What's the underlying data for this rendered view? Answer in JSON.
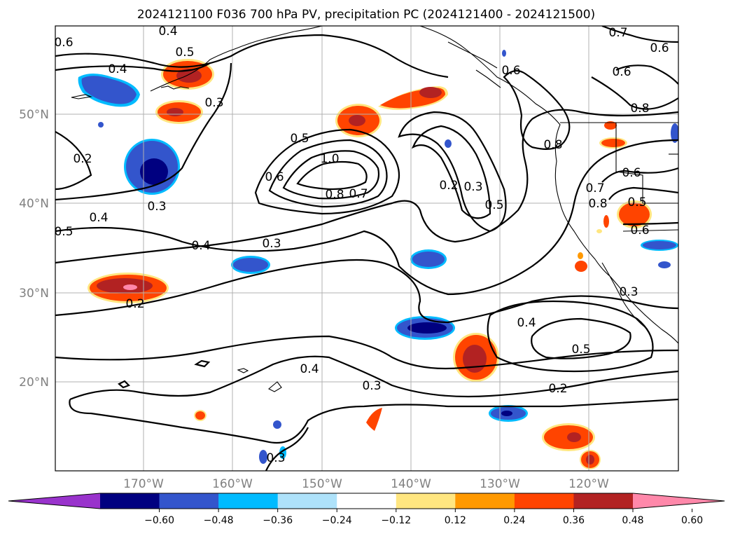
{
  "title": "2024121100 F036 700 hPa PV, precipitation PC (2024121400 - 2024121500)",
  "map": {
    "lat_labels": [
      "50°N",
      "40°N",
      "30°N",
      "20°N"
    ],
    "lon_labels": [
      "170°W",
      "160°W",
      "150°W",
      "140°W",
      "130°W",
      "120°W"
    ]
  },
  "contour_labels": [
    "0.4",
    "0.5",
    "0.3",
    "0.6",
    "0.4",
    "0.2",
    "0.3",
    "0.4",
    "0.5",
    "0.4",
    "0.3",
    "0.2",
    "0.5",
    "1.0",
    "0.6",
    "0.8",
    "0.7",
    "0.6",
    "0.8",
    "0.6",
    "0.7",
    "0.6",
    "0.8",
    "0.6",
    "0.5",
    "0.6",
    "0.2",
    "0.3",
    "0.5",
    "0.8",
    "0.7",
    "0.4",
    "0.5",
    "0.2",
    "0.3",
    "0.4",
    "0.3",
    "0.3"
  ],
  "colorbar": {
    "colors": [
      "#9933cc",
      "#000080",
      "#3355cc",
      "#00bbff",
      "#aee2fa",
      "#ffffff",
      "#ffe680",
      "#ff9900",
      "#ff4400",
      "#b22222",
      "#ff88aa"
    ],
    "ticks": [
      "−0.60",
      "−0.48",
      "−0.36",
      "−0.24",
      "−0.12",
      "0.12",
      "0.24",
      "0.36",
      "0.48",
      "0.60"
    ]
  }
}
